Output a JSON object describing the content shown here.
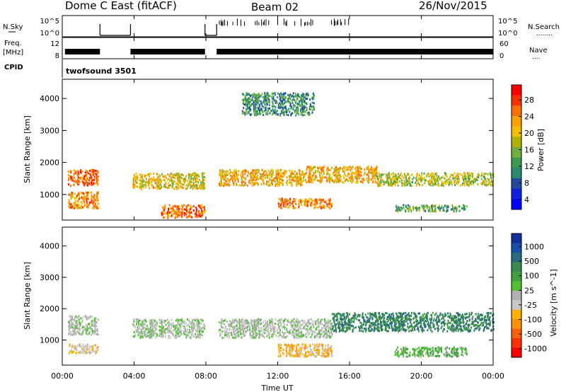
{
  "header": {
    "title": "Dome C East (fitACF)",
    "beam": "Beam 02",
    "date": "26/Nov/2015"
  },
  "nsky_panel": {
    "left_label": "N.Sky",
    "left_ticks": [
      "10^5",
      "10^0"
    ],
    "right_ticks": [
      "10^5",
      "10^0"
    ],
    "right_label": "N.Search",
    "right_dots": "........"
  },
  "freq_panel": {
    "left_label_1": "Freq.",
    "left_label_2": "[MHz]",
    "left_ticks": [
      "12",
      "8"
    ],
    "right_ticks": [
      "60",
      "0"
    ],
    "right_label": "Nave",
    "right_dots": "...."
  },
  "cpid_panel": {
    "label": "CPID",
    "text": "twofsound 3501"
  },
  "power_panel": {
    "ylabel": "Slant Range [km]",
    "yticks": [
      "4000",
      "3000",
      "2000",
      "1000"
    ],
    "colorbar_label": "Power [dB]",
    "colorbar_ticks": [
      "28",
      "24",
      "20",
      "16",
      "12",
      "8",
      "4"
    ],
    "colorbar_colors": [
      "#ff0000",
      "#ff3000",
      "#ff7000",
      "#ffa000",
      "#f0c000",
      "#b0b000",
      "#70b040",
      "#3a9a50",
      "#2a8a70",
      "#204aa0",
      "#1020e0",
      "#0000ff"
    ]
  },
  "velocity_panel": {
    "ylabel": "Slant Range [km]",
    "yticks": [
      "4000",
      "3000",
      "2000",
      "1000"
    ],
    "colorbar_label": "Velocity [m s^-1]",
    "colorbar_ticks": [
      "1000",
      "500",
      "100",
      "25",
      "-25",
      "-100",
      "-500",
      "-1000"
    ],
    "colorbar_colors": [
      "#1030a0",
      "#1850b0",
      "#2a6a80",
      "#3a8a50",
      "#40a040",
      "#50c030",
      "#b0b0b0",
      "#c8c8c8",
      "#ffb000",
      "#ff9000",
      "#ff6000",
      "#ff3000",
      "#ff0000"
    ]
  },
  "xaxis": {
    "label": "Time UT",
    "ticks": [
      "00:00",
      "04:00",
      "08:00",
      "12:00",
      "16:00",
      "20:00",
      "00:00"
    ]
  },
  "chart_data": {
    "type": "heatmap",
    "title": "Dome C East (fitACF)",
    "xlabel": "Time UT",
    "ylabel": "Slant Range [km]",
    "xlim_hours": [
      0,
      24
    ],
    "ylim_km": [
      200,
      4600
    ],
    "data_gaps_hours": [
      [
        2.1,
        3.8
      ],
      [
        7.95,
        8.6
      ]
    ],
    "series": [
      {
        "name": "Power [dB]",
        "clim": [
          0,
          30
        ],
        "echo_regions": [
          {
            "t": [
              0.3,
              2.0
            ],
            "r": [
              1300,
              1800
            ],
            "value": 24
          },
          {
            "t": [
              0.3,
              2.0
            ],
            "r": [
              600,
              1100
            ],
            "value": 22
          },
          {
            "t": [
              3.9,
              7.9
            ],
            "r": [
              1200,
              1700
            ],
            "value": 18
          },
          {
            "t": [
              5.5,
              7.9
            ],
            "r": [
              300,
              700
            ],
            "value": 24
          },
          {
            "t": [
              8.7,
              13.5
            ],
            "r": [
              1300,
              1800
            ],
            "value": 20
          },
          {
            "t": [
              13.5,
              17.5
            ],
            "r": [
              1400,
              1900
            ],
            "value": 20
          },
          {
            "t": [
              17.5,
              24.0
            ],
            "r": [
              1300,
              1700
            ],
            "value": 16
          },
          {
            "t": [
              12.0,
              15.0
            ],
            "r": [
              600,
              900
            ],
            "value": 22
          },
          {
            "t": [
              18.5,
              22.5
            ],
            "r": [
              500,
              700
            ],
            "value": 12
          },
          {
            "t": [
              10.0,
              14.0
            ],
            "r": [
              3500,
              4200
            ],
            "value": 10
          }
        ]
      },
      {
        "name": "Velocity [m s^-1]",
        "clim": [
          -1000,
          1000
        ],
        "echo_regions": [
          {
            "t": [
              0.3,
              2.0
            ],
            "r": [
              1200,
              1800
            ],
            "value": 0
          },
          {
            "t": [
              0.3,
              2.0
            ],
            "r": [
              600,
              900
            ],
            "value": -200
          },
          {
            "t": [
              3.9,
              7.9
            ],
            "r": [
              1100,
              1700
            ],
            "value": 0
          },
          {
            "t": [
              8.7,
              15.0
            ],
            "r": [
              1100,
              1700
            ],
            "value": 0
          },
          {
            "t": [
              12.0,
              15.0
            ],
            "r": [
              500,
              900
            ],
            "value": -300
          },
          {
            "t": [
              15.0,
              24.0
            ],
            "r": [
              1300,
              1900
            ],
            "value": 500
          },
          {
            "t": [
              18.5,
              22.5
            ],
            "r": [
              500,
              800
            ],
            "value": 200
          }
        ]
      }
    ]
  }
}
